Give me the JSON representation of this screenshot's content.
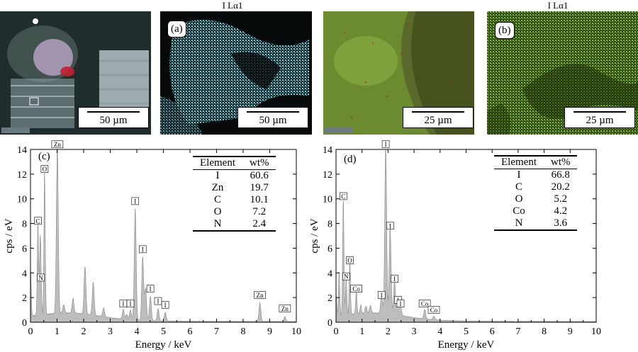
{
  "micrographs": [
    {
      "title": "",
      "scalebar": "50 µm",
      "label": "",
      "theme": "sem1"
    },
    {
      "title": "I Lα1",
      "scalebar": "50 µm",
      "label": "(a)",
      "theme": "cyan"
    },
    {
      "title": "",
      "scalebar": "25 µm",
      "label": "",
      "theme": "sem2"
    },
    {
      "title": "I Lα1",
      "scalebar": "25 µm",
      "label": "(b)",
      "theme": "green"
    }
  ],
  "spectra": [
    {
      "label": "(c)",
      "table": {
        "headers": [
          "Element",
          "wt%"
        ],
        "rows": [
          [
            "I",
            "60.6"
          ],
          [
            "Zn",
            "19.7"
          ],
          [
            "C",
            "10.1"
          ],
          [
            "O",
            "7.2"
          ],
          [
            "N",
            "2.4"
          ]
        ]
      }
    },
    {
      "label": "(d)",
      "table": {
        "headers": [
          "Element",
          "wt%"
        ],
        "rows": [
          [
            "I",
            "66.8"
          ],
          [
            "C",
            "20.2"
          ],
          [
            "O",
            "5.2"
          ],
          [
            "Co",
            "4.2"
          ],
          [
            "N",
            "3.6"
          ]
        ]
      }
    }
  ],
  "chart_data": [
    {
      "type": "area",
      "xlabel": "Energy / keV",
      "ylabel": "cps / eV",
      "xlim": [
        0,
        10
      ],
      "ylim": [
        0,
        14
      ],
      "xticks": [
        0,
        1,
        2,
        3,
        4,
        5,
        6,
        7,
        8,
        9,
        10
      ],
      "yticks": [
        0,
        2,
        4,
        6,
        8,
        10,
        12,
        14
      ],
      "color": "#bdbdbd",
      "peaks": [
        {
          "x": 0.28,
          "y": 7.7,
          "label": "C"
        },
        {
          "x": 0.39,
          "y": 3.1,
          "label": "N"
        },
        {
          "x": 0.53,
          "y": 11.9,
          "label": "O"
        },
        {
          "x": 1.01,
          "y": 13.9,
          "label": "Zn"
        },
        {
          "x": 3.94,
          "y": 9.3,
          "label": "I"
        },
        {
          "x": 4.22,
          "y": 5.4,
          "label": "I"
        },
        {
          "x": 3.49,
          "y": 1.0,
          "label": "I"
        },
        {
          "x": 3.76,
          "y": 1.0,
          "label": "I"
        },
        {
          "x": 4.51,
          "y": 2.2,
          "label": "I"
        },
        {
          "x": 4.8,
          "y": 1.2,
          "label": "I"
        },
        {
          "x": 5.07,
          "y": 0.9,
          "label": "I"
        },
        {
          "x": 8.63,
          "y": 1.7,
          "label": "Zn"
        },
        {
          "x": 9.57,
          "y": 0.6,
          "label": "Zn"
        }
      ],
      "unlabeled_peaks": [
        {
          "x": 0.0,
          "y": 4.2
        },
        {
          "x": 0.36,
          "y": 5.0
        },
        {
          "x": 1.25,
          "y": 0.9
        },
        {
          "x": 1.6,
          "y": 1.4
        },
        {
          "x": 2.05,
          "y": 4.1
        },
        {
          "x": 2.36,
          "y": 2.9
        },
        {
          "x": 2.75,
          "y": 0.9
        },
        {
          "x": 4.33,
          "y": 2.8
        },
        {
          "x": 3.62,
          "y": 0.6
        }
      ]
    },
    {
      "type": "area",
      "xlabel": "Energy / keV",
      "ylabel": "cps / eV",
      "xlim": [
        0,
        10
      ],
      "ylim": [
        0,
        14
      ],
      "xticks": [
        0,
        1,
        2,
        3,
        4,
        5,
        6,
        7,
        8,
        9,
        10
      ],
      "yticks": [
        0,
        2,
        4,
        6,
        8,
        10,
        12,
        14
      ],
      "color": "#bdbdbd",
      "peaks": [
        {
          "x": 0.28,
          "y": 9.7,
          "label": "C"
        },
        {
          "x": 0.39,
          "y": 3.2,
          "label": "N"
        },
        {
          "x": 0.53,
          "y": 4.5,
          "label": "O"
        },
        {
          "x": 0.78,
          "y": 2.2,
          "label": "Co"
        },
        {
          "x": 1.91,
          "y": 13.9,
          "label": "I"
        },
        {
          "x": 2.08,
          "y": 7.3,
          "label": "I"
        },
        {
          "x": 1.75,
          "y": 1.7,
          "label": "I"
        },
        {
          "x": 2.25,
          "y": 3.0,
          "label": "I"
        },
        {
          "x": 2.38,
          "y": 1.3,
          "label": "I"
        },
        {
          "x": 2.48,
          "y": 1.0,
          "label": "I"
        },
        {
          "x": 3.41,
          "y": 1.0,
          "label": "Co"
        },
        {
          "x": 3.76,
          "y": 0.5,
          "label": "Co"
        }
      ],
      "unlabeled_peaks": [
        {
          "x": 0.0,
          "y": 2.0
        },
        {
          "x": 0.12,
          "y": 3.8
        },
        {
          "x": 0.95,
          "y": 0.9
        },
        {
          "x": 1.15,
          "y": 0.8
        },
        {
          "x": 1.32,
          "y": 0.8
        },
        {
          "x": 6.92,
          "y": 0.15
        }
      ]
    }
  ]
}
